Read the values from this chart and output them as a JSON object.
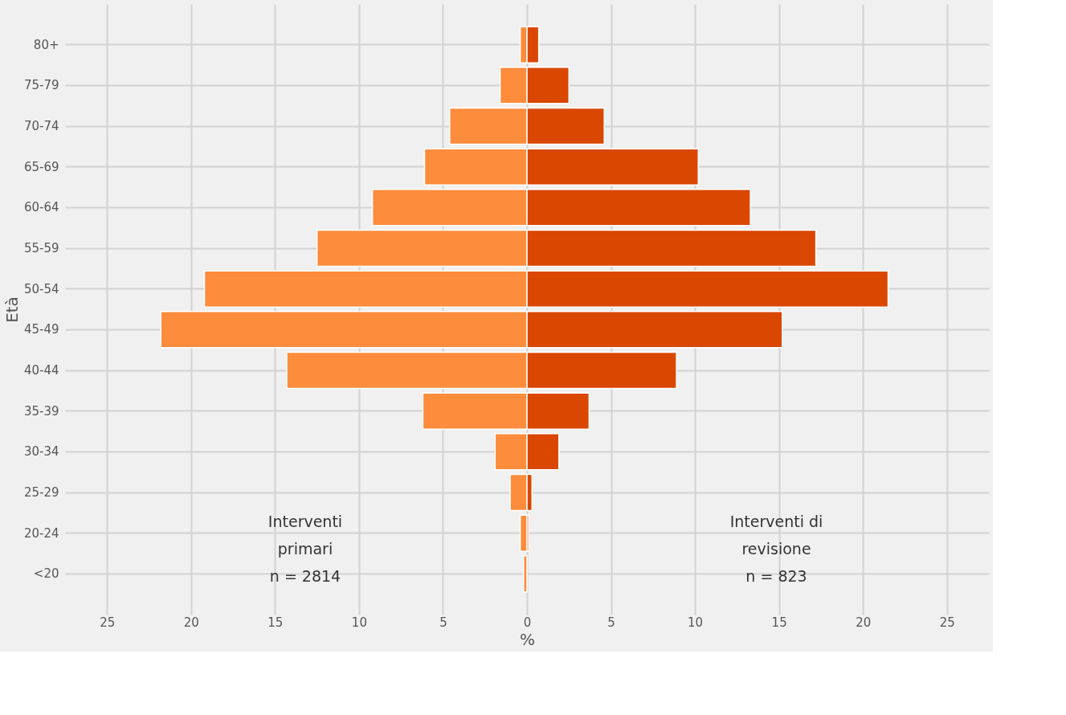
{
  "chart_data": {
    "type": "bar",
    "orientation": "horizontal",
    "xlabel": "%",
    "ylabel": "Età",
    "categories": [
      "80+",
      "75-79",
      "70-74",
      "65-69",
      "60-64",
      "55-59",
      "50-54",
      "45-49",
      "40-44",
      "35-39",
      "30-34",
      "25-29",
      "20-24",
      "<20"
    ],
    "series": [
      {
        "color": "#fd8c3c",
        "values": [
          -0.4,
          -1.6,
          -4.6,
          -6.1,
          -9.2,
          -12.5,
          -19.2,
          -21.8,
          -14.3,
          -6.2,
          -1.9,
          -1.0,
          -0.4,
          -0.2
        ]
      },
      {
        "color": "#d94701",
        "values": [
          0.7,
          2.5,
          4.6,
          10.2,
          13.3,
          17.2,
          21.5,
          15.2,
          8.9,
          3.7,
          1.9,
          0.3,
          0.1,
          null
        ]
      }
    ],
    "xlim": [
      -27.5,
      27.5
    ],
    "xticks": [
      {
        "value": -25,
        "label": "25"
      },
      {
        "value": -20,
        "label": "20"
      },
      {
        "value": -15,
        "label": "15"
      },
      {
        "value": -10,
        "label": "10"
      },
      {
        "value": -5,
        "label": "5"
      },
      0,
      5,
      10,
      15,
      20,
      25
    ],
    "grid": true,
    "legend": false,
    "stacked": true,
    "annotations": [
      "Interventi\nprimari\nn = 2814",
      "Interventi di\nrevisione\nn = 823"
    ]
  }
}
